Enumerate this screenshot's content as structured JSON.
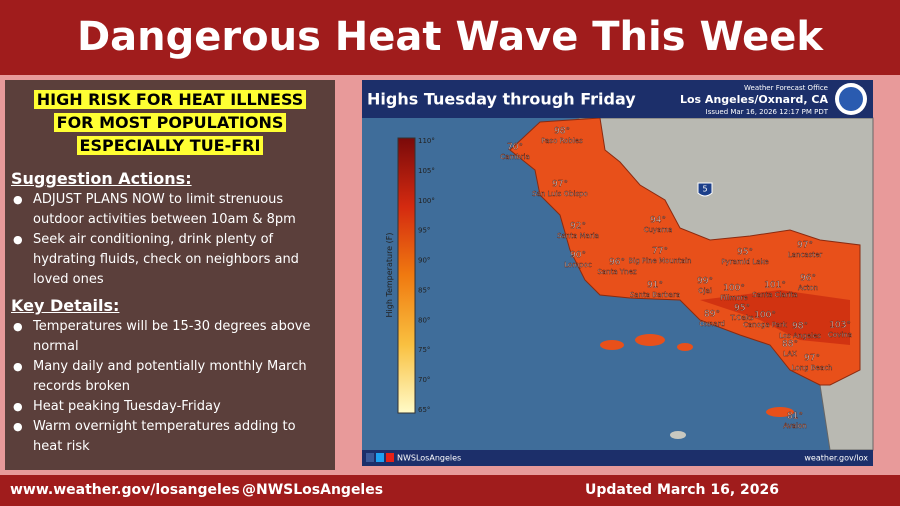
{
  "header": {
    "title": "Dangerous Heat Wave This Week"
  },
  "alert": {
    "lines": [
      "HIGH RISK FOR HEAT ILLNESS",
      "FOR MOST POPULATIONS",
      "ESPECIALLY TUE-FRI"
    ]
  },
  "suggestions": {
    "heading": "Suggestion Actions:",
    "items": [
      "ADJUST PLANS NOW to limit strenuous outdoor activities between 10am & 8pm",
      "Seek air conditioning, drink plenty of hydrating fluids, check on neighbors and loved ones"
    ]
  },
  "key_details": {
    "heading": "Key Details:",
    "items": [
      "Temperatures will be 15-30 degrees above normal",
      "Many daily and potentially monthly March records broken",
      "Heat peaking Tuesday-Friday",
      "Warm overnight temperatures adding to heat risk"
    ]
  },
  "map": {
    "title": "Highs Tuesday through Friday",
    "office": "Weather Forecast Office",
    "location": "Los Angeles/Oxnard, CA",
    "issued": "Issued Mar 16, 2026 12:17 PM PDT",
    "highway_shield": "5",
    "social": "NWSLosAngeles",
    "website": "weather.gov/lox",
    "legend": {
      "label": "High Temperature (F)",
      "ticks": [
        "110°",
        "105°",
        "100°",
        "95°",
        "90°",
        "85°",
        "80°",
        "75°",
        "70°",
        "65°"
      ]
    },
    "cities": [
      {
        "temp": "98°",
        "name": "Paso Robles"
      },
      {
        "temp": "70°",
        "name": "Cambria"
      },
      {
        "temp": "97°",
        "name": "San Luis Obispo"
      },
      {
        "temp": "92°",
        "name": "Santa Maria"
      },
      {
        "temp": "94°",
        "name": "Cuyama"
      },
      {
        "temp": "77°",
        "name": "Big Pine Mountain"
      },
      {
        "temp": "90°",
        "name": "Lompoc"
      },
      {
        "temp": "96°",
        "name": "Santa Ynez"
      },
      {
        "temp": "91°",
        "name": "Santa Barbara"
      },
      {
        "temp": "95°",
        "name": "Pyramid Lake"
      },
      {
        "temp": "97°",
        "name": "Lancaster"
      },
      {
        "temp": "99°",
        "name": "Ojai"
      },
      {
        "temp": "100°",
        "name": "Fillmore"
      },
      {
        "temp": "101°",
        "name": "Santa Clarita"
      },
      {
        "temp": "96°",
        "name": "Acton"
      },
      {
        "temp": "95°",
        "name": "T.Oaks"
      },
      {
        "temp": "89°",
        "name": "Oxnard"
      },
      {
        "temp": "100°",
        "name": "Canoga Park"
      },
      {
        "temp": "98°",
        "name": "Los Angeles"
      },
      {
        "temp": "88°",
        "name": "LAX"
      },
      {
        "temp": "103°",
        "name": "Covina"
      },
      {
        "temp": "97°",
        "name": "Long Beach"
      },
      {
        "temp": "81°",
        "name": "Avalon"
      }
    ]
  },
  "footer": {
    "website": "www.weather.gov/losangeles",
    "handle": "@NWSLosAngeles",
    "updated": "Updated March 16, 2026"
  }
}
